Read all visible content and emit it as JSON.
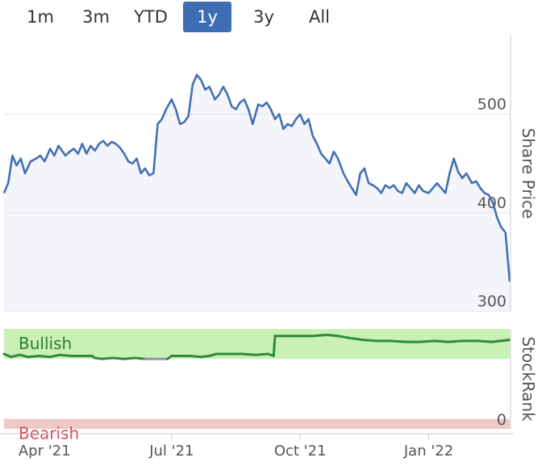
{
  "range_selector": {
    "buttons": [
      {
        "label": "1m",
        "active": false
      },
      {
        "label": "3m",
        "active": false
      },
      {
        "label": "YTD",
        "active": false
      },
      {
        "label": "1y",
        "active": true
      },
      {
        "label": "3y",
        "active": false
      },
      {
        "label": "All",
        "active": false
      }
    ]
  },
  "colors": {
    "price_line": "#4470b4",
    "bullish_band": "#c9f0b5",
    "bearish_band": "#efc9c6",
    "rank_line": "#2e8b3e",
    "rank_line_low": "#8a9aa8",
    "bearish_text": "#d64a55",
    "accent": "#3f6db3"
  },
  "chart_data": [
    {
      "type": "line",
      "name": "price",
      "ylabel": "Share Price",
      "ylim": [
        300,
        580
      ],
      "yticks": [
        300,
        400,
        500
      ],
      "xlim": [
        "2021-03-03",
        "2022-02-28"
      ],
      "xticks": [
        {
          "date": "2021-04-01",
          "label": "Apr '21"
        },
        {
          "date": "2021-07-01",
          "label": "Jul '21"
        },
        {
          "date": "2021-10-01",
          "label": "Oct '21"
        },
        {
          "date": "2022-01-01",
          "label": "Jan '22"
        }
      ],
      "grid": true,
      "x": [
        "2021-03-03",
        "2021-03-06",
        "2021-03-09",
        "2021-03-12",
        "2021-03-15",
        "2021-03-18",
        "2021-03-22",
        "2021-03-26",
        "2021-03-29",
        "2021-04-01",
        "2021-04-05",
        "2021-04-08",
        "2021-04-11",
        "2021-04-14",
        "2021-04-16",
        "2021-04-19",
        "2021-04-22",
        "2021-04-25",
        "2021-04-28",
        "2021-05-01",
        "2021-05-04",
        "2021-05-07",
        "2021-05-10",
        "2021-05-13",
        "2021-05-16",
        "2021-05-19",
        "2021-05-22",
        "2021-05-25",
        "2021-05-28",
        "2021-05-31",
        "2021-06-03",
        "2021-06-06",
        "2021-06-09",
        "2021-06-12",
        "2021-06-15",
        "2021-06-18",
        "2021-06-21",
        "2021-06-24",
        "2021-06-27",
        "2021-07-01",
        "2021-07-04",
        "2021-07-07",
        "2021-07-10",
        "2021-07-13",
        "2021-07-16",
        "2021-07-19",
        "2021-07-22",
        "2021-07-25",
        "2021-07-28",
        "2021-08-01",
        "2021-08-04",
        "2021-08-07",
        "2021-08-10",
        "2021-08-13",
        "2021-08-16",
        "2021-08-19",
        "2021-08-22",
        "2021-08-25",
        "2021-08-28",
        "2021-09-01",
        "2021-09-04",
        "2021-09-07",
        "2021-09-10",
        "2021-09-13",
        "2021-09-16",
        "2021-09-19",
        "2021-09-22",
        "2021-09-25",
        "2021-09-28",
        "2021-10-01",
        "2021-10-04",
        "2021-10-07",
        "2021-10-10",
        "2021-10-13",
        "2021-10-16",
        "2021-10-19",
        "2021-10-22",
        "2021-10-25",
        "2021-10-28",
        "2021-11-01",
        "2021-11-04",
        "2021-11-07",
        "2021-11-10",
        "2021-11-13",
        "2021-11-16",
        "2021-11-19",
        "2021-11-22",
        "2021-11-25",
        "2021-11-28",
        "2021-12-01",
        "2021-12-04",
        "2021-12-07",
        "2021-12-10",
        "2021-12-13",
        "2021-12-16",
        "2021-12-19",
        "2021-12-22",
        "2021-12-25",
        "2021-12-28",
        "2022-01-01",
        "2022-01-04",
        "2022-01-07",
        "2022-01-10",
        "2022-01-13",
        "2022-01-16",
        "2022-01-19",
        "2022-01-22",
        "2022-01-25",
        "2022-01-28",
        "2022-02-01",
        "2022-02-04",
        "2022-02-07",
        "2022-02-10",
        "2022-02-13",
        "2022-02-16",
        "2022-02-19",
        "2022-02-22",
        "2022-02-25",
        "2022-02-28"
      ],
      "y": [
        420,
        430,
        458,
        448,
        455,
        440,
        452,
        455,
        458,
        452,
        465,
        458,
        468,
        462,
        458,
        462,
        465,
        460,
        470,
        460,
        468,
        463,
        470,
        473,
        468,
        472,
        470,
        466,
        460,
        452,
        450,
        455,
        440,
        445,
        438,
        440,
        490,
        495,
        505,
        515,
        505,
        490,
        492,
        498,
        530,
        540,
        535,
        525,
        528,
        515,
        520,
        528,
        520,
        508,
        505,
        512,
        515,
        505,
        490,
        510,
        508,
        512,
        505,
        495,
        500,
        485,
        490,
        488,
        495,
        500,
        490,
        495,
        478,
        470,
        460,
        455,
        450,
        462,
        455,
        440,
        432,
        425,
        418,
        440,
        445,
        430,
        428,
        425,
        420,
        428,
        425,
        428,
        422,
        420,
        430,
        425,
        420,
        428,
        422,
        420,
        425,
        430,
        425,
        420,
        440,
        455,
        442,
        435,
        440,
        430,
        432,
        425,
        420,
        418,
        410,
        395,
        385,
        380,
        330
      ]
    },
    {
      "type": "line",
      "name": "StockRank",
      "ylabel": "StockRank",
      "ylim": [
        0,
        100
      ],
      "yticks": [
        0
      ],
      "bands": [
        {
          "label": "Bullish",
          "from": 70,
          "to": 100
        },
        {
          "label": "Bearish",
          "from": 0,
          "to": 10
        }
      ],
      "x": [
        "2021-03-03",
        "2021-03-08",
        "2021-03-14",
        "2021-03-20",
        "2021-03-28",
        "2021-04-05",
        "2021-04-12",
        "2021-04-20",
        "2021-04-28",
        "2021-05-05",
        "2021-05-07",
        "2021-05-12",
        "2021-05-20",
        "2021-05-28",
        "2021-06-05",
        "2021-06-12",
        "2021-06-20",
        "2021-06-28",
        "2021-07-01",
        "2021-07-06",
        "2021-07-14",
        "2021-07-22",
        "2021-07-28",
        "2021-08-02",
        "2021-08-10",
        "2021-08-20",
        "2021-08-30",
        "2021-09-08",
        "2021-09-12",
        "2021-09-13",
        "2021-09-20",
        "2021-10-01",
        "2021-10-10",
        "2021-10-20",
        "2021-10-28",
        "2021-11-05",
        "2021-11-15",
        "2021-11-25",
        "2021-12-05",
        "2021-12-15",
        "2021-12-25",
        "2022-01-05",
        "2022-01-15",
        "2022-01-25",
        "2022-02-05",
        "2022-02-15",
        "2022-02-28"
      ],
      "y": [
        75,
        72,
        74,
        72,
        73,
        72,
        74,
        73,
        73,
        73,
        71,
        70,
        71,
        70,
        71,
        70,
        70,
        70,
        73,
        73,
        73,
        72,
        73,
        75,
        75,
        75,
        74,
        75,
        73,
        93,
        93,
        93,
        93,
        94,
        93,
        91,
        89,
        88,
        88,
        87,
        87,
        88,
        87,
        88,
        88,
        87,
        89
      ]
    }
  ]
}
